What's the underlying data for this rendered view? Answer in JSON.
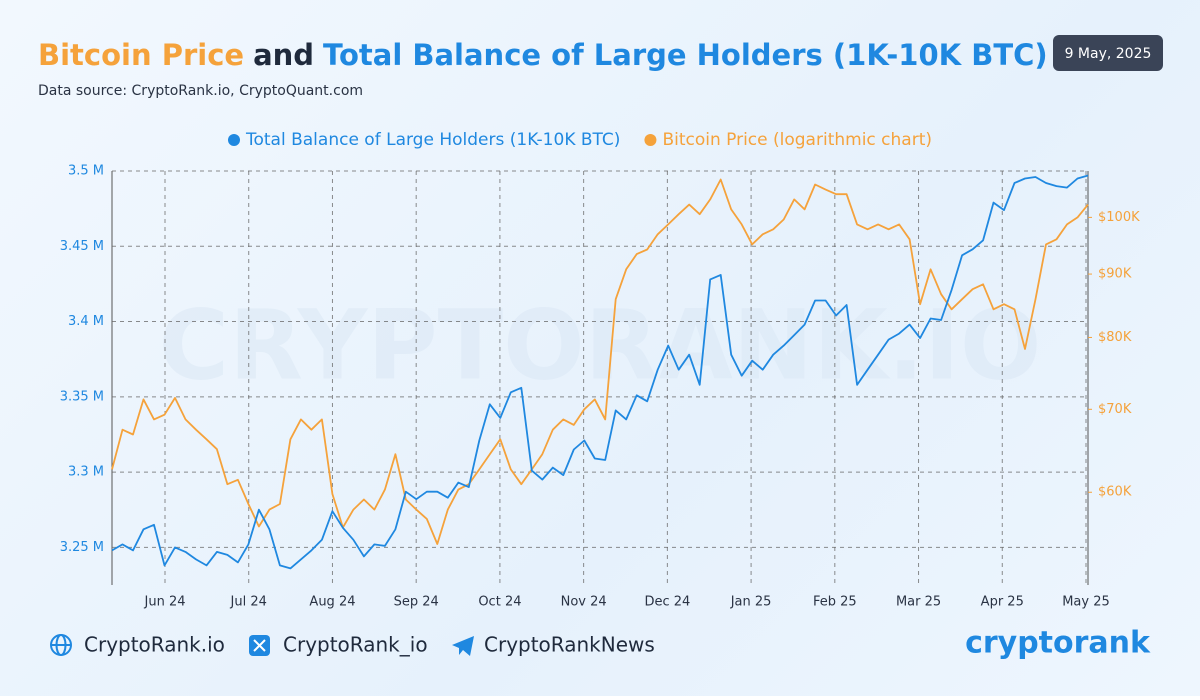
{
  "header": {
    "title_parts": [
      {
        "text": "Bitcoin Price",
        "color": "#f5a23b"
      },
      {
        "text": "and",
        "color": "#1f2a3c"
      },
      {
        "text": "Total Balance of Large Holders (1K-10K BTC)",
        "color": "#1f88e0"
      }
    ],
    "subtitle": "Data source: CryptoRank.io, CryptoQuant.com",
    "date": "9 May, 2025"
  },
  "chart_data": {
    "type": "line",
    "watermark": "CRYPTORANK.IO",
    "legend": "top",
    "grid": true,
    "x_labels": [
      "Jun 24",
      "Jul 24",
      "Aug 24",
      "Sep 24",
      "Oct 24",
      "Nov 24",
      "Dec 24",
      "Jan 25",
      "Feb 25",
      "Mar 25",
      "Apr 25",
      "May 25"
    ],
    "ylim": [
      3.225,
      3.5
    ],
    "yticks": [
      {
        "value": 3.25,
        "label": "3.25 M"
      },
      {
        "value": 3.3,
        "label": "3.3 M"
      },
      {
        "value": 3.35,
        "label": "3.35 M"
      },
      {
        "value": 3.4,
        "label": "3.4 M"
      },
      {
        "value": 3.45,
        "label": "3.45 M"
      },
      {
        "value": 3.5,
        "label": "3.5 M"
      }
    ],
    "y2lim": [
      50500,
      109000
    ],
    "y2log": true,
    "y2ticks": [
      {
        "value": 60000,
        "label": "$60K"
      },
      {
        "value": 70000,
        "label": "$70K"
      },
      {
        "value": 80000,
        "label": "$80K"
      },
      {
        "value": 90000,
        "label": "$90K"
      },
      {
        "value": 100000,
        "label": "$100K"
      }
    ],
    "series": [
      {
        "name": "Total Balance of Large Holders (1K-10K BTC)",
        "color": "#1f88e0",
        "axis": "y",
        "values": [
          3.248,
          3.252,
          3.248,
          3.262,
          3.265,
          3.238,
          3.25,
          3.247,
          3.242,
          3.238,
          3.247,
          3.245,
          3.24,
          3.252,
          3.275,
          3.262,
          3.238,
          3.236,
          3.242,
          3.248,
          3.255,
          3.274,
          3.263,
          3.255,
          3.244,
          3.252,
          3.251,
          3.262,
          3.287,
          3.282,
          3.287,
          3.287,
          3.283,
          3.293,
          3.29,
          3.321,
          3.345,
          3.336,
          3.353,
          3.356,
          3.301,
          3.295,
          3.303,
          3.298,
          3.315,
          3.321,
          3.309,
          3.308,
          3.341,
          3.335,
          3.351,
          3.347,
          3.368,
          3.384,
          3.368,
          3.378,
          3.358,
          3.428,
          3.431,
          3.378,
          3.364,
          3.374,
          3.368,
          3.378,
          3.384,
          3.391,
          3.398,
          3.414,
          3.414,
          3.404,
          3.411,
          3.358,
          3.368,
          3.378,
          3.388,
          3.392,
          3.398,
          3.389,
          3.402,
          3.401,
          3.421,
          3.444,
          3.448,
          3.454,
          3.479,
          3.474,
          3.492,
          3.495,
          3.496,
          3.492,
          3.49,
          3.489,
          3.495,
          3.497
        ]
      },
      {
        "name": "Bitcoin Price (logarithmic chart)",
        "color": "#f5a23b",
        "axis": "y2",
        "values": [
          62600,
          67400,
          66800,
          71300,
          68700,
          69300,
          71500,
          68700,
          67400,
          66200,
          65000,
          60900,
          61400,
          58700,
          56300,
          58100,
          58700,
          66200,
          68700,
          67400,
          68700,
          59800,
          56200,
          58100,
          59200,
          58100,
          60300,
          64400,
          59200,
          58100,
          57100,
          54500,
          58100,
          60300,
          60900,
          62600,
          64400,
          66200,
          62600,
          60900,
          62600,
          64400,
          67400,
          68700,
          68000,
          70000,
          71300,
          68700,
          85900,
          90800,
          93400,
          94200,
          96900,
          98700,
          100600,
          102400,
          100600,
          103400,
          107300,
          101500,
          98700,
          95100,
          96900,
          97800,
          99600,
          103400,
          101500,
          106300,
          105300,
          104400,
          104400,
          98700,
          97800,
          98700,
          97800,
          98700,
          96000,
          85100,
          90800,
          86700,
          84300,
          85900,
          87500,
          88300,
          84300,
          85100,
          84300,
          78300,
          85900,
          95100,
          96000,
          98700,
          100000,
          102400
        ]
      }
    ]
  },
  "footer": {
    "links": [
      "CryptoRank.io",
      "CryptoRank_io",
      "CryptoRankNews"
    ],
    "logo": "cryptorank"
  }
}
